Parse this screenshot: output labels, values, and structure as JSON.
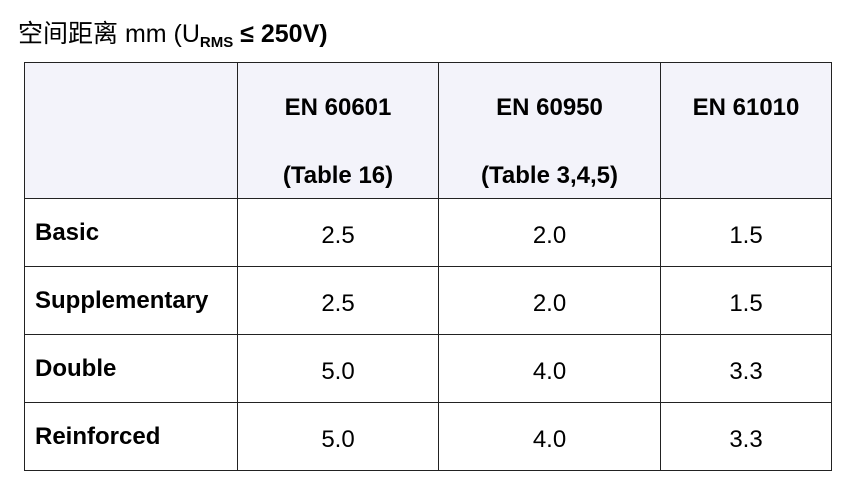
{
  "title": {
    "prefix": "空间距离 mm (U",
    "subscript": "RMS",
    "suffix": " ≤ 250V)"
  },
  "table": {
    "columns": [
      {
        "name": "EN 60601",
        "note": "(Table 16)"
      },
      {
        "name": "EN 60950",
        "note": "(Table 3,4,5)"
      },
      {
        "name": "EN 61010"
      }
    ],
    "rows": [
      {
        "label": "Basic",
        "values": [
          "2.5",
          "2.0",
          "1.5"
        ]
      },
      {
        "label": "Supplementary",
        "values": [
          "2.5",
          "2.0",
          "1.5"
        ]
      },
      {
        "label": "Double",
        "values": [
          "5.0",
          "4.0",
          "3.3"
        ]
      },
      {
        "label": "Reinforced",
        "values": [
          "5.0",
          "4.0",
          "3.3"
        ]
      }
    ]
  }
}
